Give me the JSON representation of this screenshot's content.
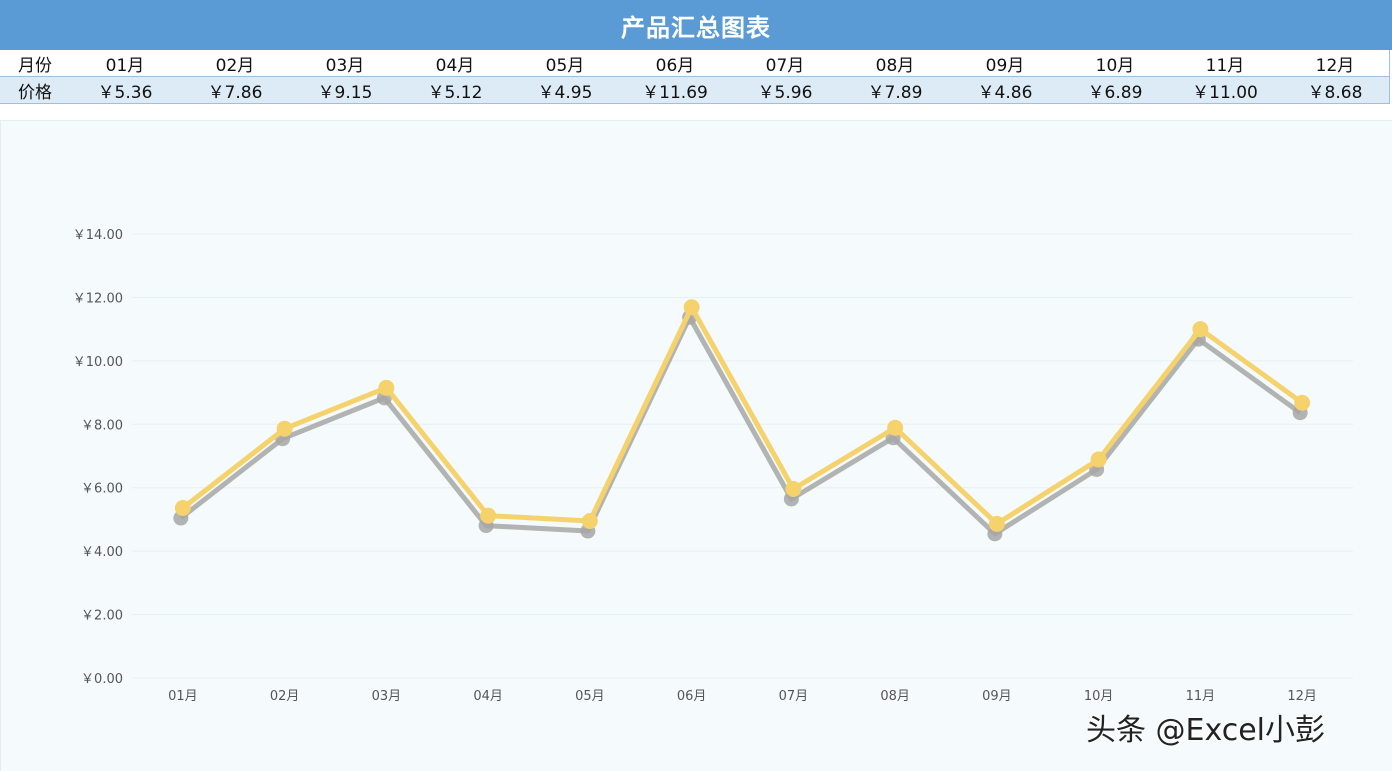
{
  "header": {
    "title": "产品汇总图表"
  },
  "colors": {
    "title_bg": "#5b9bd5",
    "price_row_bg": "#ddebf7",
    "chart_bg": "#f5fbfc",
    "line_main": "#f5d26b",
    "line_shadow": "#a6a6a6"
  },
  "table": {
    "month_label": "月份",
    "price_label": "价格",
    "months": [
      "01月",
      "02月",
      "03月",
      "04月",
      "05月",
      "06月",
      "07月",
      "08月",
      "09月",
      "10月",
      "11月",
      "12月"
    ],
    "prices": [
      "￥5.36",
      "￥7.86",
      "￥9.15",
      "￥5.12",
      "￥4.95",
      "￥11.69",
      "￥5.96",
      "￥7.89",
      "￥4.86",
      "￥6.89",
      "￥11.00",
      "￥8.68"
    ]
  },
  "chart_data": {
    "type": "line",
    "categories": [
      "01月",
      "02月",
      "03月",
      "04月",
      "05月",
      "06月",
      "07月",
      "08月",
      "09月",
      "10月",
      "11月",
      "12月"
    ],
    "series": [
      {
        "values": [
          5.36,
          7.86,
          9.15,
          5.12,
          4.95,
          11.69,
          5.96,
          7.89,
          4.86,
          6.89,
          11.0,
          8.68
        ]
      }
    ],
    "ylim": [
      0,
      14
    ],
    "yticks": [
      0,
      2,
      4,
      6,
      8,
      10,
      12,
      14
    ],
    "ytick_labels": [
      "￥0.00",
      "￥2.00",
      "￥4.00",
      "￥6.00",
      "￥8.00",
      "￥10.00",
      "￥12.00",
      "￥14.00"
    ],
    "grid": true,
    "shadow": true
  },
  "watermark": {
    "text": "头条 @Excel小彭"
  }
}
